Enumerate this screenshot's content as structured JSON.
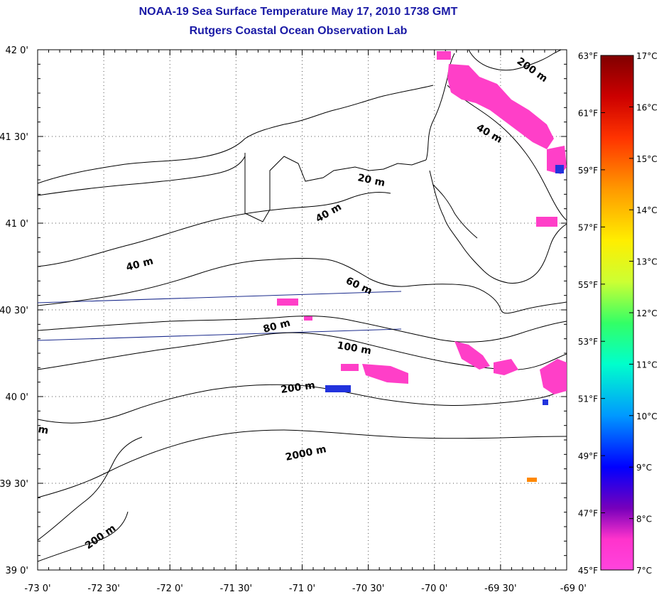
{
  "title": "NOAA-19 Sea Surface Temperature May 17, 2010 1738 GMT",
  "subtitle": "Rutgers Coastal Ocean Observation Lab",
  "map": {
    "lat_labels": [
      "42 0'",
      "41 30'",
      "41 0'",
      "40 30'",
      "40 0'",
      "39 30'",
      "39 0'"
    ],
    "lon_labels": [
      "-73 0'",
      "-72 30'",
      "-72 0'",
      "-71 30'",
      "-71 0'",
      "-70 30'",
      "-70 0'",
      "-69 30'",
      "-69 0'"
    ],
    "contour_labels": [
      "200 m",
      "40 m",
      "20 m",
      "40 m",
      "40 m",
      "60 m",
      "80 m",
      "100 m",
      "200 m",
      "2000 m",
      "200 m",
      "m"
    ],
    "colors": {
      "land_outline": "#000000",
      "contour": "#000000",
      "track_line": "#1a2a8c",
      "warm_patch": "#ff3fc8",
      "cold_patch": "#2233dd"
    }
  },
  "colorbar": {
    "fahrenheit_labels": [
      "63°F",
      "61°F",
      "59°F",
      "57°F",
      "55°F",
      "53°F",
      "51°F",
      "49°F",
      "47°F",
      "45°F"
    ],
    "celsius_labels": [
      "17°C",
      "16°C",
      "15°C",
      "14°C",
      "13°C",
      "12°C",
      "11°C",
      "10°C",
      "9°C",
      "8°C",
      "7°C"
    ],
    "gradient_stops": [
      "#800000",
      "#cc0000",
      "#ff3300",
      "#ff9900",
      "#ffee00",
      "#ccff33",
      "#33ff66",
      "#00ffcc",
      "#0099ff",
      "#0000ff",
      "#7700bb",
      "#ff33cc",
      "#ff44dd"
    ]
  }
}
